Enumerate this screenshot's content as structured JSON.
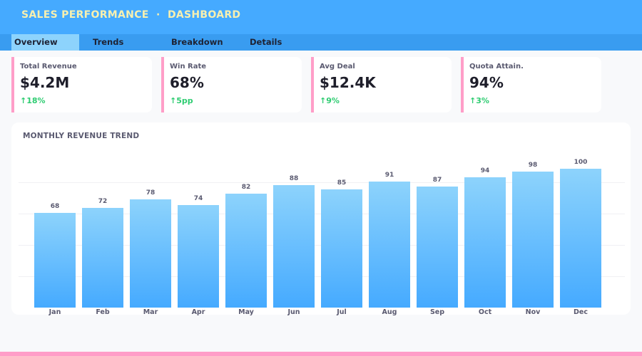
{
  "header": {
    "title": "SALES PERFORMANCE  ·  DASHBOARD"
  },
  "tabs": [
    {
      "label": "Overview",
      "active": true
    },
    {
      "label": "Trends"
    },
    {
      "label": "Breakdown"
    },
    {
      "label": "Details"
    }
  ],
  "kpis": [
    {
      "label": "Total Revenue",
      "value": "$4.2M",
      "change": "↑18%"
    },
    {
      "label": "Win Rate",
      "value": "68%",
      "change": "↑5pp"
    },
    {
      "label": "Avg Deal",
      "value": "$12.4K",
      "change": "↑9%"
    },
    {
      "label": "Quota Attain.",
      "value": "94%",
      "change": "↑3%"
    }
  ],
  "colors": {
    "header": "#45aaff",
    "accent": "#ff9ec8",
    "positive": "#2ecc71",
    "bar_top": "#8dd3fc",
    "bar_bottom": "#45aaff"
  },
  "chart_data": {
    "type": "bar",
    "title": "MONTHLY REVENUE TREND",
    "categories": [
      "Jan",
      "Feb",
      "Mar",
      "Apr",
      "May",
      "Jun",
      "Jul",
      "Aug",
      "Sep",
      "Oct",
      "Nov",
      "Dec"
    ],
    "values": [
      68,
      72,
      78,
      74,
      82,
      88,
      85,
      91,
      87,
      94,
      98,
      100
    ],
    "ylim": [
      0,
      100
    ],
    "grid": true
  }
}
